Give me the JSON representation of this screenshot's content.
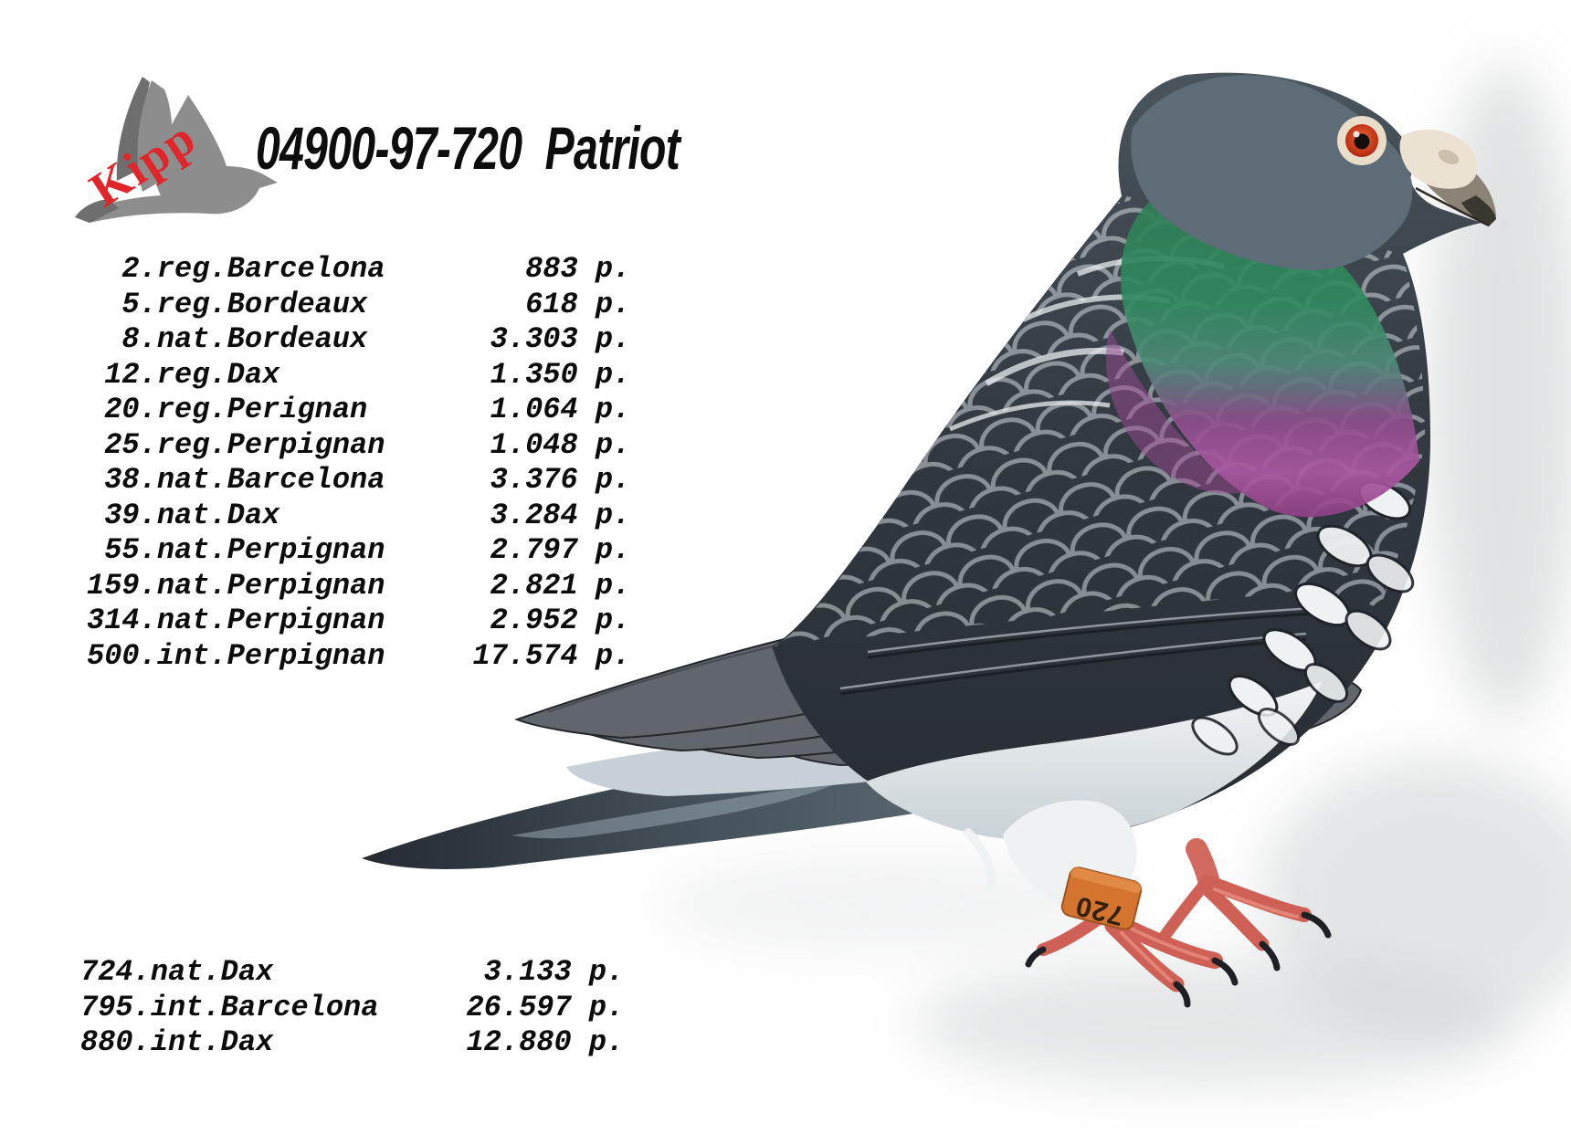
{
  "logo": {
    "brand": "Kipp",
    "brand_color": "#e0252b",
    "icon": "dove-logo"
  },
  "title": "04900-97-720  Patriot",
  "points_suffix": "p.",
  "results_top": [
    {
      "rank": "2",
      "race": "reg.Barcelona",
      "points": "883"
    },
    {
      "rank": "5",
      "race": "reg.Bordeaux",
      "points": "618"
    },
    {
      "rank": "8",
      "race": "nat.Bordeaux",
      "points": "3.303"
    },
    {
      "rank": "12",
      "race": "reg.Dax",
      "points": "1.350"
    },
    {
      "rank": "20",
      "race": "reg.Perignan",
      "points": "1.064"
    },
    {
      "rank": "25",
      "race": "reg.Perpignan",
      "points": "1.048"
    },
    {
      "rank": "38",
      "race": "nat.Barcelona",
      "points": "3.376"
    },
    {
      "rank": "39",
      "race": "nat.Dax",
      "points": "3.284"
    },
    {
      "rank": "55",
      "race": "nat.Perpignan",
      "points": "2.797"
    },
    {
      "rank": "159",
      "race": "nat.Perpignan",
      "points": "2.821"
    },
    {
      "rank": "314",
      "race": "nat.Perpignan",
      "points": "2.952"
    },
    {
      "rank": "500",
      "race": "int.Perpignan",
      "points": "17.574"
    }
  ],
  "results_bottom": [
    {
      "rank": "724",
      "race": "nat.Dax",
      "points": "3.133"
    },
    {
      "rank": "795",
      "race": "int.Barcelona",
      "points": "26.597"
    },
    {
      "rank": "880",
      "race": "int.Dax",
      "points": "12.880"
    }
  ],
  "photo": {
    "alt": "Racing pigeon standing in side profile facing right",
    "ring_band_text": "720",
    "colors": {
      "head": "#5d6c76",
      "neck_green": "#2f8a5e",
      "neck_purple": "#a855a0",
      "wing_dark": "#2b3138",
      "belly": "#e8edef",
      "feet": "#cf6056",
      "ring_band": "#d4742e",
      "eye_iris": "#c93a1c",
      "shadow": "#c9ccce"
    }
  }
}
